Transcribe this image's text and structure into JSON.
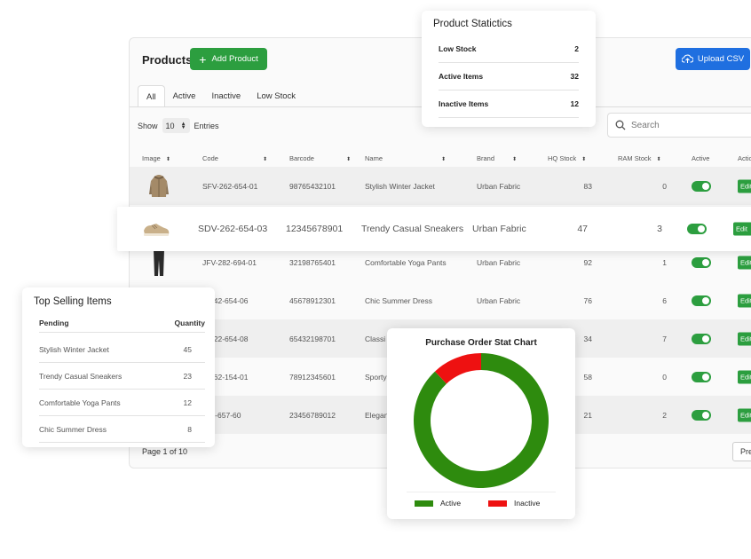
{
  "header": {
    "title": "Products",
    "add_label": "Add Product",
    "upload_label": "Upload CSV"
  },
  "tabs": [
    {
      "label": "All",
      "active": true
    },
    {
      "label": "Active"
    },
    {
      "label": "Inactive"
    },
    {
      "label": "Low Stock"
    }
  ],
  "entries": {
    "show": "Show",
    "value": "10",
    "suffix": "Entries"
  },
  "search": {
    "placeholder": "Search"
  },
  "table": {
    "columns": [
      "Image",
      "Code",
      "Barcode",
      "Name",
      "Brand",
      "HQ Stock",
      "RAM Stock",
      "Active",
      "Actio"
    ],
    "edit_label": "Edit",
    "rows": [
      {
        "image": "jacket-image",
        "code": "SFV-262-654-01",
        "barcode": "98765432101",
        "name": "Stylish Winter Jacket",
        "brand": "Urban Fabric",
        "hq": "83",
        "ram": "0",
        "active": true
      },
      {
        "image": "sneakers-image",
        "code": "SDV-262-654-03",
        "barcode": "12345678901",
        "name": "Trendy Casual Sneakers",
        "brand": "Urban Fabric",
        "hq": "47",
        "ram": "3",
        "active": true
      },
      {
        "image": "pants-image",
        "code": "JFV-282-694-01",
        "barcode": "32198765401",
        "name": "Comfortable Yoga Pants",
        "brand": "Urban Fabric",
        "hq": "92",
        "ram": "1",
        "active": true
      },
      {
        "image": "dress-image",
        "code": "V-242-654-06",
        "barcode": "45678912301",
        "name": "Chic Summer Dress",
        "brand": "Urban Fabric",
        "hq": "76",
        "ram": "6",
        "active": true
      },
      {
        "image": "",
        "code": "V-222-654-08",
        "barcode": "65432198701",
        "name": "Classi",
        "brand": "",
        "hq": "34",
        "ram": "7",
        "active": true
      },
      {
        "image": "",
        "code": "V-262-154-01",
        "barcode": "78912345601",
        "name": "Sporty",
        "brand": "",
        "hq": "58",
        "ram": "0",
        "active": true
      },
      {
        "image": "",
        "code": "862-657-60",
        "barcode": "23456789012",
        "name": "Elegan",
        "brand": "",
        "hq": "21",
        "ram": "2",
        "active": true
      }
    ]
  },
  "pagination": {
    "text": "Page 1 of 10",
    "prev_label": "Pre"
  },
  "stats": {
    "title": "Product Statictics",
    "rows": [
      {
        "label": "Low Stock",
        "value": "2"
      },
      {
        "label": "Active Items",
        "value": "32"
      },
      {
        "label": "Inactive Items",
        "value": "12"
      }
    ]
  },
  "top_selling": {
    "title": "Top Selling Items",
    "head": {
      "left": "Pending",
      "right": "Quantity"
    },
    "rows": [
      {
        "name": "Stylish Winter Jacket",
        "qty": "45"
      },
      {
        "name": "Trendy Casual Sneakers",
        "qty": "23"
      },
      {
        "name": "Comfortable Yoga Pants",
        "qty": "12"
      },
      {
        "name": "Chic Summer Dress",
        "qty": "8"
      }
    ]
  },
  "colors": {
    "green": "#2c9e3f",
    "blue": "#1f6fe0",
    "chart_active": "#2e8b0e",
    "chart_inactive": "#ee1111"
  },
  "chart_data": {
    "type": "pie",
    "title": "Purchase Order Stat Chart",
    "categories": [
      "Active",
      "Inactive"
    ],
    "values": [
      88,
      12
    ],
    "colors": [
      "#2e8b0e",
      "#ee1111"
    ],
    "donut": true,
    "legend": "bottom"
  }
}
